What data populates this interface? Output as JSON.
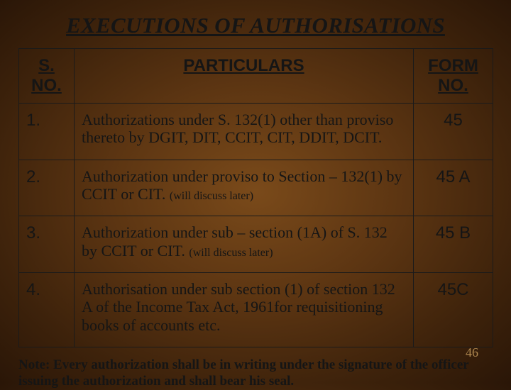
{
  "title": "EXECUTIONS OF AUTHORISATIONS",
  "headers": {
    "sno": "S. NO.",
    "particulars": "PARTICULARS",
    "form": "FORM NO."
  },
  "rows": [
    {
      "sno": "1.",
      "part": "Authorizations under S. 132(1) other than proviso thereto by DGIT, DIT, CCIT, CIT, DDIT, DCIT.",
      "later": "",
      "form": "45"
    },
    {
      "sno": "2.",
      "part": "Authorization under proviso to Section – 132(1) by CCIT or CIT. ",
      "later": "(will discuss later)",
      "form": "45 A"
    },
    {
      "sno": "3.",
      "part": "Authorization under sub – section (1A) of S. 132 by CCIT or CIT. ",
      "later": "(will discuss later)",
      "form": "45 B"
    },
    {
      "sno": "4.",
      "part": "Authorisation under sub section (1) of section 132 A of the Income Tax Act, 1961for requisitioning books of accounts etc.",
      "later": "",
      "form": "45C"
    }
  ],
  "note": "Note: Every authorization shall be in writing under the signature of the officer issuing the authorization and shall bear his seal.",
  "page": "46"
}
